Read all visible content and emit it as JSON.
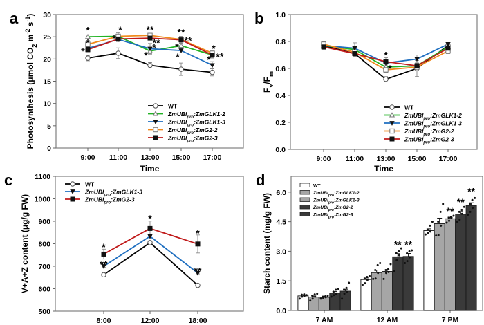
{
  "chart_data": [
    {
      "id": "a",
      "type": "line",
      "panel_label": "a",
      "title": "",
      "xlabel": "Time",
      "ylabel": "Photosynthesis (μmol CO2 m-2 s-1)",
      "ylabel_parts": [
        "Photosynthesis (μmol CO",
        "2",
        " m",
        "-2",
        " s",
        "-1",
        ")"
      ],
      "categories": [
        "9:00",
        "11:00",
        "13:00",
        "15:00",
        "17:00"
      ],
      "ylim": [
        0,
        30
      ],
      "yticks": [
        0,
        5,
        10,
        15,
        20,
        25,
        30
      ],
      "ytick_labels": [
        "0",
        "5",
        "10",
        "15",
        "20",
        "25",
        "30"
      ],
      "grid": false,
      "legend_position": "bottom-right",
      "series": [
        {
          "name": "WT",
          "label_main": "WT",
          "sub": "",
          "rest": "",
          "color": "#000000",
          "marker": "open-circle",
          "values": [
            20.2,
            21.3,
            18.6,
            17.7,
            17.0
          ],
          "errors": [
            0.6,
            1.2,
            0.6,
            1.4,
            0.8
          ]
        },
        {
          "name": "ZmUBIpro:ZmGLK1-2",
          "label_main": "ZmUBI",
          "sub": "pro",
          "rest": ":ZmGLK1-2",
          "color": "#22b324",
          "marker": "open-triangle",
          "values": [
            25.0,
            25.1,
            21.8,
            23.0,
            20.9
          ],
          "errors": [
            0.4,
            0.5,
            0.6,
            0.6,
            0.6
          ]
        },
        {
          "name": "ZmUBIpro:ZmGLK1-3",
          "label_main": "ZmUBI",
          "sub": "pro",
          "rest": ":ZmGLK1-3",
          "color": "#1f6fc0",
          "marker": "filled-triangle-down",
          "values": [
            22.4,
            24.4,
            22.3,
            21.9,
            18.6
          ],
          "errors": [
            0.5,
            0.5,
            1.2,
            0.5,
            0.8
          ]
        },
        {
          "name": "ZmUBIpro:ZmG2-2",
          "label_main": "ZmUBI",
          "sub": "pro",
          "rest": ":ZmG2-2",
          "color": "#f08a1c",
          "marker": "open-square",
          "values": [
            23.3,
            25.1,
            25.3,
            24.4,
            21.3
          ],
          "errors": [
            0.5,
            0.8,
            0.4,
            0.6,
            0.5
          ]
        },
        {
          "name": "ZmUBIpro:ZmG2-3",
          "label_main": "ZmUBI",
          "sub": "pro",
          "rest": ":ZmG2-3",
          "color": "#c01a1a",
          "marker": "filled-square",
          "values": [
            22.1,
            24.5,
            24.7,
            24.3,
            20.9
          ],
          "errors": [
            0.5,
            0.5,
            0.4,
            0.8,
            0.7
          ]
        }
      ],
      "annotations": [
        {
          "text": "*",
          "x": 0,
          "y": 26.5,
          "dx": 0
        },
        {
          "text": "*",
          "x": 0,
          "y": 23.7,
          "dx": 0
        },
        {
          "text": "*",
          "x": 0,
          "y": 21.8,
          "dx": -7
        },
        {
          "text": "*",
          "x": 1,
          "y": 26.6,
          "dx": 3
        },
        {
          "text": "*",
          "x": 1,
          "y": 24.6,
          "dx": -6
        },
        {
          "text": "**",
          "x": 2,
          "y": 26.6,
          "dx": 0
        },
        {
          "text": "**",
          "x": 2,
          "y": 23.7,
          "dx": 9
        },
        {
          "text": "*",
          "x": 2,
          "y": 22.6,
          "dx": 6
        },
        {
          "text": "*",
          "x": 2,
          "y": 20.8,
          "dx": -6
        },
        {
          "text": "**",
          "x": 3,
          "y": 26.0,
          "dx": 0
        },
        {
          "text": "**",
          "x": 3,
          "y": 24.2,
          "dx": 10
        },
        {
          "text": "*",
          "x": 3,
          "y": 22.8,
          "dx": -6
        },
        {
          "text": "*",
          "x": 3,
          "y": 20.5,
          "dx": -5
        },
        {
          "text": "*",
          "x": 4,
          "y": 22.4,
          "dx": 2
        },
        {
          "text": "**",
          "x": 4,
          "y": 20.6,
          "dx": 11
        },
        {
          "text": "*",
          "x": 4,
          "y": 19.9,
          "dx": -5
        }
      ]
    },
    {
      "id": "b",
      "type": "line",
      "panel_label": "b",
      "title": "",
      "xlabel": "Time",
      "ylabel": "Fv/Fm",
      "ylabel_parts": [
        "F",
        "v",
        "/F",
        "m"
      ],
      "categories": [
        "9:00",
        "11:00",
        "13:00",
        "15:00",
        "17:00"
      ],
      "ylim": [
        0.0,
        1.0
      ],
      "yticks": [
        0.0,
        0.2,
        0.4,
        0.6,
        0.8,
        1.0
      ],
      "ytick_labels": [
        "0.0",
        "0.2",
        "0.4",
        "0.6",
        "0.8",
        "1.0"
      ],
      "grid": false,
      "legend_position": "bottom-right",
      "series": [
        {
          "name": "WT",
          "label_main": "WT",
          "sub": "",
          "rest": "",
          "color": "#000000",
          "marker": "open-circle",
          "values": [
            0.77,
            0.71,
            0.52,
            0.6,
            0.77
          ],
          "errors": [
            0.02,
            0.02,
            0.02,
            0.06,
            0.01
          ]
        },
        {
          "name": "ZmUBIpro:ZmGLK1-2",
          "label_main": "ZmUBI",
          "sub": "pro",
          "rest": ":ZmGLK1-2",
          "color": "#22b324",
          "marker": "open-triangle",
          "values": [
            0.77,
            0.74,
            0.61,
            0.62,
            0.76
          ],
          "errors": [
            0.02,
            0.02,
            0.02,
            0.02,
            0.02
          ]
        },
        {
          "name": "ZmUBIpro:ZmGLK1-3",
          "label_main": "ZmUBI",
          "sub": "pro",
          "rest": ":ZmGLK1-3",
          "color": "#1f6fc0",
          "marker": "filled-triangle-down",
          "values": [
            0.77,
            0.75,
            0.64,
            0.67,
            0.78
          ],
          "errors": [
            0.02,
            0.04,
            0.02,
            0.03,
            0.01
          ]
        },
        {
          "name": "ZmUBIpro:ZmG2-2",
          "label_main": "ZmUBI",
          "sub": "pro",
          "rest": ":ZmG2-2",
          "color": "#f08a1c",
          "marker": "open-square",
          "values": [
            0.78,
            0.72,
            0.59,
            0.61,
            0.73
          ],
          "errors": [
            0.02,
            0.02,
            0.02,
            0.02,
            0.02
          ]
        },
        {
          "name": "ZmUBIpro:ZmG2-3",
          "label_main": "ZmUBI",
          "sub": "pro",
          "rest": ":ZmG2-3",
          "color": "#c01a1a",
          "marker": "filled-square",
          "values": [
            0.76,
            0.71,
            0.65,
            0.62,
            0.75
          ],
          "errors": [
            0.02,
            0.02,
            0.03,
            0.02,
            0.02
          ]
        }
      ],
      "annotations": [
        {
          "text": "*",
          "x": 2,
          "y": 0.7,
          "dx": 0
        },
        {
          "text": "*",
          "x": 2,
          "y": 0.6,
          "dx": 6
        }
      ]
    },
    {
      "id": "c",
      "type": "line",
      "panel_label": "c",
      "title": "",
      "xlabel": "",
      "ylabel": "V+A+Z content (μg/g FW)",
      "ylabel_parts": [
        "V+A+Z content (μg/g FW)"
      ],
      "categories": [
        "8:00",
        "12:00",
        "18:00"
      ],
      "ylim": [
        500,
        1100
      ],
      "yticks": [
        500,
        600,
        700,
        800,
        900,
        1000,
        1100
      ],
      "ytick_labels": [
        "500",
        "600",
        "700",
        "800",
        "900",
        "1000",
        "1100"
      ],
      "grid": false,
      "legend_position": "top-left",
      "series": [
        {
          "name": "WT",
          "label_main": "WT",
          "sub": "",
          "rest": "",
          "color": "#000000",
          "marker": "open-circle",
          "values": [
            662,
            805,
            615
          ],
          "errors": [
            3,
            8,
            5
          ]
        },
        {
          "name": "ZmUBIpro:ZmGLK1-3",
          "label_main": "ZmUBI",
          "sub": "pro",
          "rest": ":ZmGLK1-3",
          "color": "#1f6fc0",
          "marker": "filled-triangle-down",
          "values": [
            700,
            833,
            670
          ],
          "errors": [
            4,
            5,
            4
          ]
        },
        {
          "name": "ZmUBIpro:ZmG2-3",
          "label_main": "ZmUBI",
          "sub": "pro",
          "rest": ":ZmG2-3",
          "color": "#c01a1a",
          "marker": "filled-square",
          "values": [
            754,
            868,
            799
          ],
          "errors": [
            22,
            33,
            40
          ]
        }
      ],
      "annotations": [
        {
          "text": "*",
          "x": 0,
          "y": 786,
          "dx": 0
        },
        {
          "text": "**",
          "x": 0,
          "y": 709,
          "dx": 0
        },
        {
          "text": "*",
          "x": 1,
          "y": 912,
          "dx": 0
        },
        {
          "text": "*",
          "x": 2,
          "y": 848,
          "dx": 0
        },
        {
          "text": "**",
          "x": 2,
          "y": 680,
          "dx": 0
        }
      ]
    },
    {
      "id": "d",
      "type": "bar",
      "panel_label": "d",
      "title": "",
      "xlabel": "",
      "ylabel": "Starch content (mg/g FW)",
      "ylabel_parts": [
        "Starch content (mg/g FW)"
      ],
      "categories": [
        "7 AM",
        "12 AM",
        "7 PM"
      ],
      "ylim": [
        0.0,
        6.8
      ],
      "yticks": [
        0.0,
        1.5,
        3.0,
        4.5,
        6.0
      ],
      "ytick_labels": [
        "0.0",
        "1.5",
        "3.0",
        "4.5",
        "6.0"
      ],
      "grid": false,
      "legend_position": "top-left",
      "series": [
        {
          "name": "WT",
          "label_main": "WT",
          "sub": "",
          "rest": "",
          "color": "#ffffff",
          "values": [
            0.74,
            1.57,
            4.05
          ],
          "errors": [
            0.05,
            0.08,
            0.09
          ],
          "points": [
            [
              0.6,
              0.7,
              0.75,
              0.8,
              0.82,
              0.78
            ],
            [
              1.3,
              1.38,
              1.55,
              1.62,
              1.7,
              1.75
            ],
            [
              3.85,
              3.92,
              4.0,
              4.1,
              4.3,
              4.5
            ]
          ]
        },
        {
          "name": "ZmUBIpro:ZmGLK1-2",
          "label_main": "ZmUBI",
          "sub": "pro",
          "rest": ":ZmGLK1-2",
          "color": "#a6a6a6",
          "values": [
            0.68,
            1.92,
            4.4
          ],
          "errors": [
            0.06,
            0.13,
            0.28
          ],
          "points": [
            [
              0.5,
              0.6,
              0.7,
              0.75,
              0.82,
              0.85
            ],
            [
              1.6,
              1.62,
              1.9,
              2.05,
              2.3,
              2.4
            ],
            [
              3.8,
              3.82,
              4.3,
              4.5,
              5.0,
              5.4
            ]
          ]
        },
        {
          "name": "ZmUBIpro:ZmGLK1-3",
          "label_main": "ZmUBI",
          "sub": "pro",
          "rest": ":ZmGLK1-3",
          "color": "#a6a6a6",
          "values": [
            0.67,
            1.98,
            4.65
          ],
          "errors": [
            0.03,
            0.08,
            0.08
          ],
          "points": [
            [
              0.6,
              0.64,
              0.67,
              0.7,
              0.72,
              0.74
            ],
            [
              1.6,
              1.9,
              1.95,
              2.05,
              2.1,
              2.35
            ],
            [
              4.45,
              4.55,
              4.7,
              4.7,
              4.75,
              4.8
            ]
          ]
        },
        {
          "name": "ZmUBIpro:ZmG2-2",
          "label_main": "ZmUBI",
          "sub": "pro",
          "rest": ":ZmG2-2",
          "color": "#3a3a3a",
          "values": [
            0.88,
            2.72,
            4.88
          ],
          "errors": [
            0.08,
            0.16,
            0.14
          ],
          "points": [
            [
              0.7,
              0.78,
              0.85,
              0.95,
              1.05,
              1.1
            ],
            [
              2.0,
              2.55,
              2.8,
              2.9,
              3.0,
              3.15
            ],
            [
              4.5,
              4.6,
              4.9,
              5.0,
              5.1,
              5.25
            ]
          ]
        },
        {
          "name": "ZmUBIpro:ZmG2-3",
          "label_main": "ZmUBI",
          "sub": "pro",
          "rest": ":ZmG2-3",
          "color": "#3a3a3a",
          "values": [
            0.98,
            2.74,
            5.32
          ],
          "errors": [
            0.1,
            0.15,
            0.14
          ],
          "points": [
            [
              0.6,
              0.85,
              0.95,
              1.05,
              1.15,
              1.4
            ],
            [
              2.4,
              2.5,
              2.7,
              2.9,
              3.0,
              3.05
            ],
            [
              4.85,
              5.0,
              5.2,
              5.4,
              5.6,
              5.7
            ]
          ]
        }
      ],
      "annotations": [
        {
          "text": "**",
          "group": 1,
          "bar": 3,
          "y": 3.35
        },
        {
          "text": "**",
          "group": 1,
          "bar": 4,
          "y": 3.35
        },
        {
          "text": "**",
          "group": 2,
          "bar": 2,
          "y": 5.05
        },
        {
          "text": "**",
          "group": 2,
          "bar": 3,
          "y": 5.5
        },
        {
          "text": "**",
          "group": 2,
          "bar": 4,
          "y": 6.05
        }
      ]
    }
  ]
}
